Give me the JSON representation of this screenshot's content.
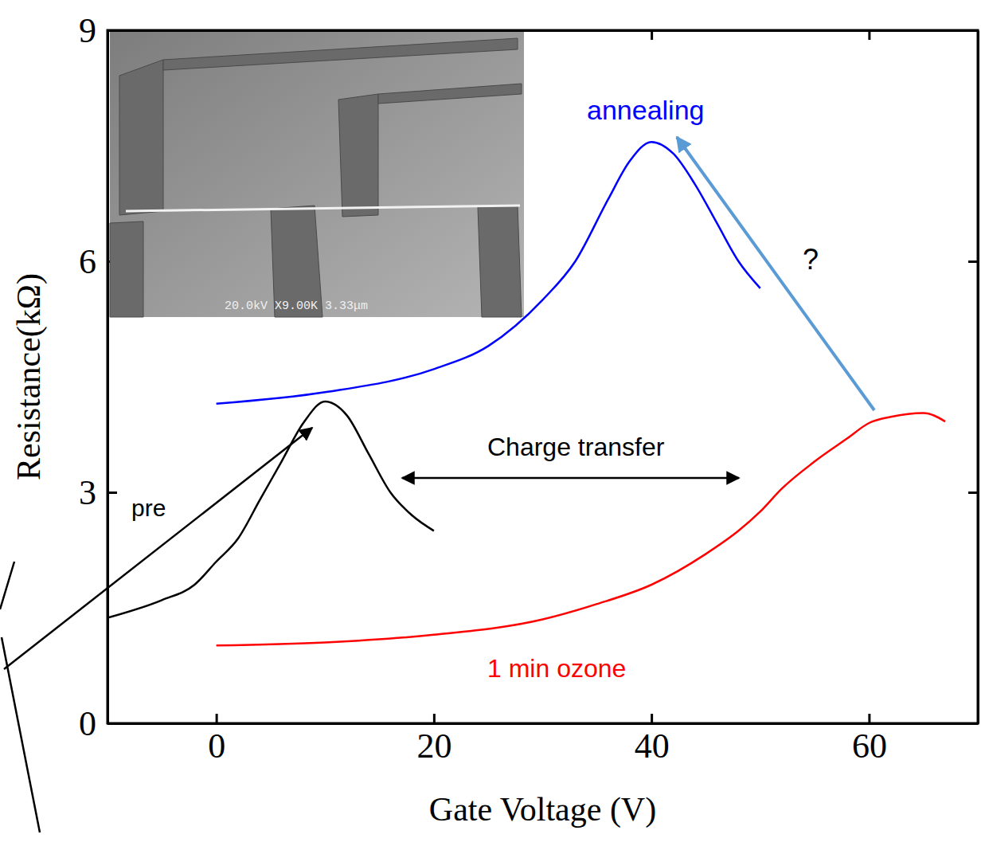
{
  "chart_data": {
    "type": "line",
    "x_label": "Gate Voltage (V)",
    "y_label": "Resistance(kΩ)",
    "xlim": [
      -10,
      70
    ],
    "xticks": [
      0,
      20,
      40,
      60
    ],
    "ylim": [
      0,
      9
    ],
    "yticks": [
      0,
      3,
      6,
      9
    ],
    "series": [
      {
        "name": "pre",
        "color": "#000000",
        "x": [
          -10,
          -5,
          -2,
          0,
          2,
          4,
          6,
          8,
          10,
          12,
          14,
          16,
          18,
          20
        ],
        "values": [
          1.37,
          1.6,
          1.8,
          2.1,
          2.4,
          2.9,
          3.4,
          3.9,
          4.18,
          4.0,
          3.5,
          3.0,
          2.7,
          2.5
        ]
      },
      {
        "name": "1 min ozone",
        "color": "#ff0000",
        "x": [
          0,
          10,
          20,
          30,
          35,
          40,
          45,
          48,
          50,
          52,
          55,
          58,
          60,
          62,
          65,
          67
        ],
        "values": [
          1.01,
          1.05,
          1.15,
          1.35,
          1.55,
          1.8,
          2.2,
          2.5,
          2.75,
          3.05,
          3.4,
          3.7,
          3.9,
          3.98,
          4.03,
          3.92
        ]
      },
      {
        "name": "annealing",
        "color": "#0000ff",
        "x": [
          0,
          10,
          20,
          25,
          30,
          33,
          36,
          38,
          40,
          42,
          44,
          46,
          48,
          50
        ],
        "values": [
          4.15,
          4.3,
          4.6,
          4.9,
          5.5,
          6.0,
          6.8,
          7.3,
          7.55,
          7.4,
          7.0,
          6.5,
          6.0,
          5.65
        ]
      }
    ],
    "annotations": [
      "Charge transfer",
      "?"
    ],
    "inset_caption": "20.0kV X9.00K 3.33μm"
  }
}
